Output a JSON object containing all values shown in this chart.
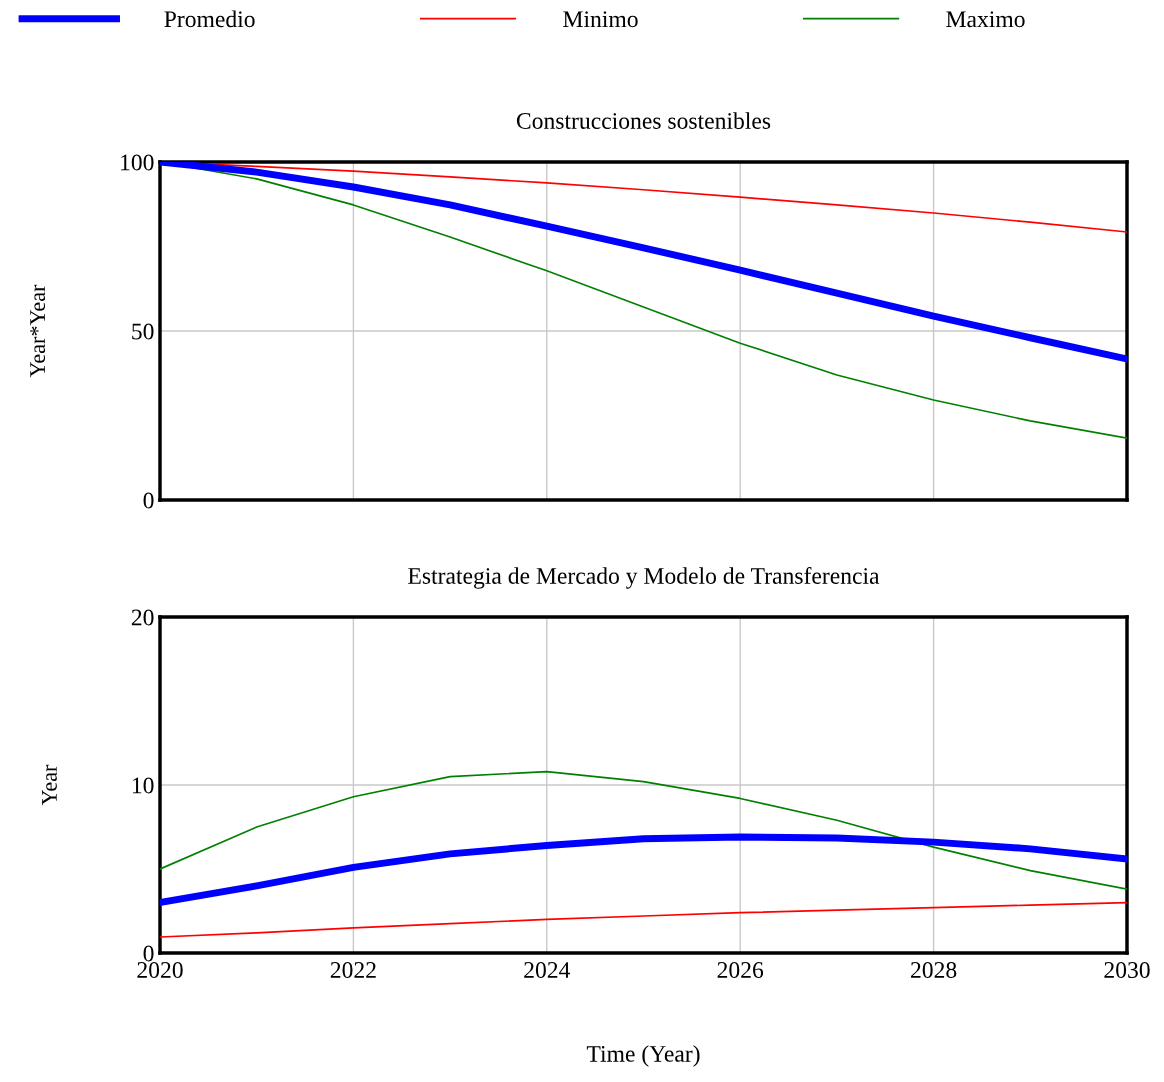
{
  "chart_data": [
    {
      "type": "line",
      "title": "Construcciones sostenibles",
      "ylabel": "Year*Year",
      "x": [
        2020,
        2021,
        2022,
        2023,
        2024,
        2025,
        2026,
        2027,
        2028,
        2029,
        2030
      ],
      "xlim": [
        2020,
        2030
      ],
      "xticks": [
        2020,
        2022,
        2024,
        2026,
        2028,
        2030
      ],
      "ylim": [
        0,
        100
      ],
      "yticks": [
        0,
        50,
        100
      ],
      "grid": true,
      "legend": "top",
      "tick_labels": "y",
      "marker": "none",
      "line_style": "solid",
      "series": [
        {
          "name": "Promedio",
          "color": "#0000ff",
          "values": [
            100,
            97,
            92.6,
            87.3,
            81,
            74.6,
            68,
            61.2,
            54.4,
            48,
            41.7
          ]
        },
        {
          "name": "Minimo",
          "color": "#ff0000",
          "values": [
            100,
            98.7,
            97.3,
            95.6,
            93.8,
            91.8,
            89.6,
            87.3,
            84.9,
            82.2,
            79.3
          ]
        },
        {
          "name": "Maximo",
          "color": "#008000",
          "values": [
            100,
            95,
            87.3,
            77.8,
            67.8,
            57.1,
            46.4,
            37,
            29.6,
            23.4,
            18.3
          ]
        }
      ]
    },
    {
      "type": "line",
      "title": "Estrategia de Mercado y Modelo de Transferencia",
      "ylabel": "Year",
      "xlabel": "Time (Year)",
      "x": [
        2020,
        2021,
        2022,
        2023,
        2024,
        2025,
        2026,
        2027,
        2028,
        2029,
        2030
      ],
      "xlim": [
        2020,
        2030
      ],
      "xticks": [
        2020,
        2022,
        2024,
        2026,
        2028,
        2030
      ],
      "ylim": [
        0,
        20
      ],
      "yticks": [
        0,
        10,
        20
      ],
      "grid": true,
      "marker": "none",
      "line_style": "solid",
      "series": [
        {
          "color": "#0000ff",
          "values": [
            3.0,
            4.0,
            5.1,
            5.9,
            6.4,
            6.8,
            6.9,
            6.85,
            6.6,
            6.2,
            5.6
          ]
        },
        {
          "color": "#ff0000",
          "values": [
            0.95,
            1.2,
            1.5,
            1.75,
            2.0,
            2.2,
            2.4,
            2.55,
            2.7,
            2.85,
            3.0
          ]
        },
        {
          "color": "#008000",
          "values": [
            5.0,
            7.5,
            9.3,
            10.5,
            10.8,
            10.2,
            9.2,
            7.9,
            6.3,
            4.9,
            3.8
          ]
        }
      ]
    }
  ]
}
